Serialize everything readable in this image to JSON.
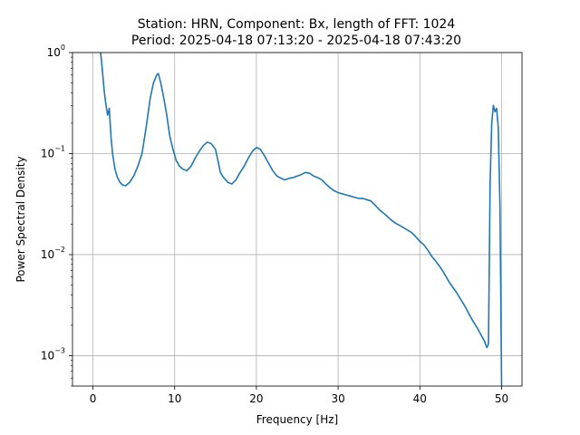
{
  "chart_data": {
    "type": "line",
    "title_line1": "Station: HRN, Component: Bx, length of FFT: 1024",
    "title_line2": "Period: 2025-04-18 07:13:20 - 2025-04-18 07:43:20",
    "xlabel": "Frequency [Hz]",
    "ylabel": "Power Spectral Density",
    "xlim": [
      -2.5,
      52.5
    ],
    "ylim": [
      0.0005,
      1
    ],
    "yscale": "log",
    "grid": true,
    "line_color": "#1f77b4",
    "x_ticks": [
      {
        "value": 0,
        "label": "0"
      },
      {
        "value": 10,
        "label": "10"
      },
      {
        "value": 20,
        "label": "20"
      },
      {
        "value": 30,
        "label": "30"
      },
      {
        "value": 40,
        "label": "40"
      },
      {
        "value": 50,
        "label": "50"
      }
    ],
    "y_ticks": [
      {
        "value": 0.001,
        "base": "10",
        "exp": "−3"
      },
      {
        "value": 0.01,
        "base": "10",
        "exp": "−2"
      },
      {
        "value": 0.1,
        "base": "10",
        "exp": "−1"
      },
      {
        "value": 1,
        "base": "10",
        "exp": "0"
      }
    ],
    "series": [
      {
        "x": [
          0.8,
          1.0,
          1.2,
          1.4,
          1.6,
          1.8,
          2.0,
          2.2,
          2.4,
          2.7,
          3.0,
          3.3,
          3.6,
          4.0,
          4.5,
          5.0,
          5.5,
          6.0,
          6.5,
          7.0,
          7.4,
          7.8,
          8.0,
          8.3,
          8.6,
          9.0,
          9.4,
          9.8,
          10.2,
          10.6,
          11.0,
          11.5,
          12.0,
          12.5,
          13.0,
          13.5,
          14.0,
          14.5,
          15.0,
          15.3,
          15.6,
          16.0,
          16.5,
          17.0,
          17.5,
          18.0,
          18.5,
          19.0,
          19.5,
          20.0,
          20.5,
          21.0,
          21.5,
          22.0,
          22.5,
          23.0,
          23.5,
          24.0,
          24.5,
          25.0,
          25.5,
          26.0,
          26.5,
          27.0,
          27.5,
          28.0,
          28.5,
          29.0,
          29.5,
          30.0,
          30.5,
          31.0,
          31.5,
          32.0,
          32.5,
          33.0,
          33.5,
          34.0,
          34.5,
          35.0,
          35.5,
          36.0,
          36.5,
          37.0,
          37.5,
          38.0,
          38.5,
          39.0,
          39.5,
          40.0,
          40.5,
          41.0,
          41.5,
          42.0,
          42.5,
          43.0,
          43.5,
          44.0,
          44.5,
          45.0,
          45.5,
          46.0,
          46.5,
          47.0,
          47.5,
          47.9,
          48.2,
          48.4,
          48.6,
          48.8,
          49.0,
          49.2,
          49.4,
          49.6,
          49.8,
          50.0
        ],
        "y": [
          1.2,
          0.9,
          0.6,
          0.4,
          0.3,
          0.24,
          0.28,
          0.15,
          0.1,
          0.07,
          0.058,
          0.052,
          0.049,
          0.048,
          0.052,
          0.06,
          0.075,
          0.1,
          0.18,
          0.35,
          0.5,
          0.6,
          0.62,
          0.5,
          0.38,
          0.25,
          0.15,
          0.11,
          0.085,
          0.075,
          0.07,
          0.068,
          0.075,
          0.09,
          0.105,
          0.12,
          0.13,
          0.125,
          0.11,
          0.085,
          0.065,
          0.058,
          0.052,
          0.05,
          0.055,
          0.065,
          0.075,
          0.09,
          0.105,
          0.115,
          0.11,
          0.095,
          0.08,
          0.068,
          0.06,
          0.057,
          0.055,
          0.057,
          0.058,
          0.06,
          0.062,
          0.065,
          0.064,
          0.06,
          0.058,
          0.055,
          0.05,
          0.046,
          0.043,
          0.041,
          0.04,
          0.039,
          0.038,
          0.037,
          0.036,
          0.036,
          0.035,
          0.034,
          0.031,
          0.028,
          0.026,
          0.024,
          0.022,
          0.0205,
          0.0195,
          0.0185,
          0.0175,
          0.0165,
          0.015,
          0.0135,
          0.0125,
          0.011,
          0.0095,
          0.0085,
          0.0075,
          0.0065,
          0.0055,
          0.0048,
          0.0042,
          0.0036,
          0.0031,
          0.0026,
          0.0022,
          0.0019,
          0.0016,
          0.0014,
          0.0012,
          0.0013,
          0.05,
          0.2,
          0.3,
          0.26,
          0.28,
          0.18,
          0.03,
          0.0005
        ]
      }
    ]
  }
}
